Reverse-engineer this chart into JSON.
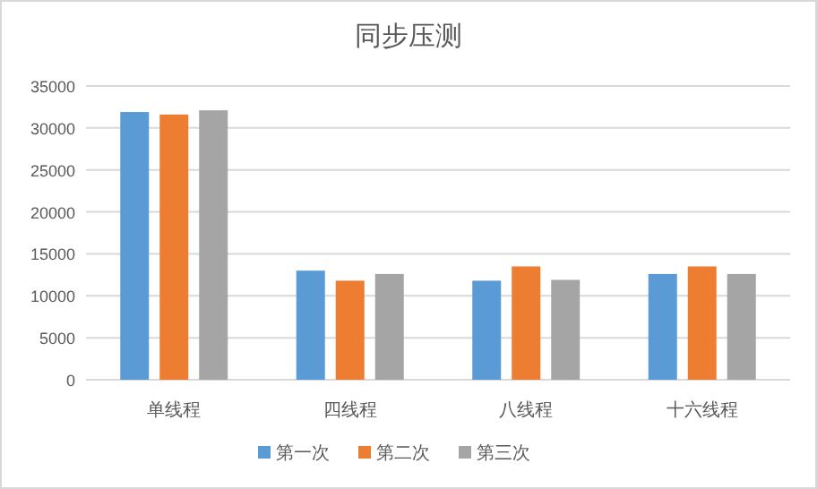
{
  "chart_data": {
    "type": "bar",
    "title": "同步压测",
    "categories": [
      "单线程",
      "四线程",
      "八线程",
      "十六线程"
    ],
    "series": [
      {
        "name": "第一次",
        "color": "#5b9bd5",
        "values": [
          31900,
          13000,
          11800,
          12600
        ]
      },
      {
        "name": "第二次",
        "color": "#ed7d31",
        "values": [
          31600,
          11800,
          13500,
          13500
        ]
      },
      {
        "name": "第三次",
        "color": "#a5a5a5",
        "values": [
          32100,
          12600,
          11900,
          12600
        ]
      }
    ],
    "ylim": [
      0,
      35000
    ],
    "yticks": [
      0,
      5000,
      10000,
      15000,
      20000,
      25000,
      30000,
      35000
    ],
    "grid": "y",
    "legend": "bottom"
  }
}
